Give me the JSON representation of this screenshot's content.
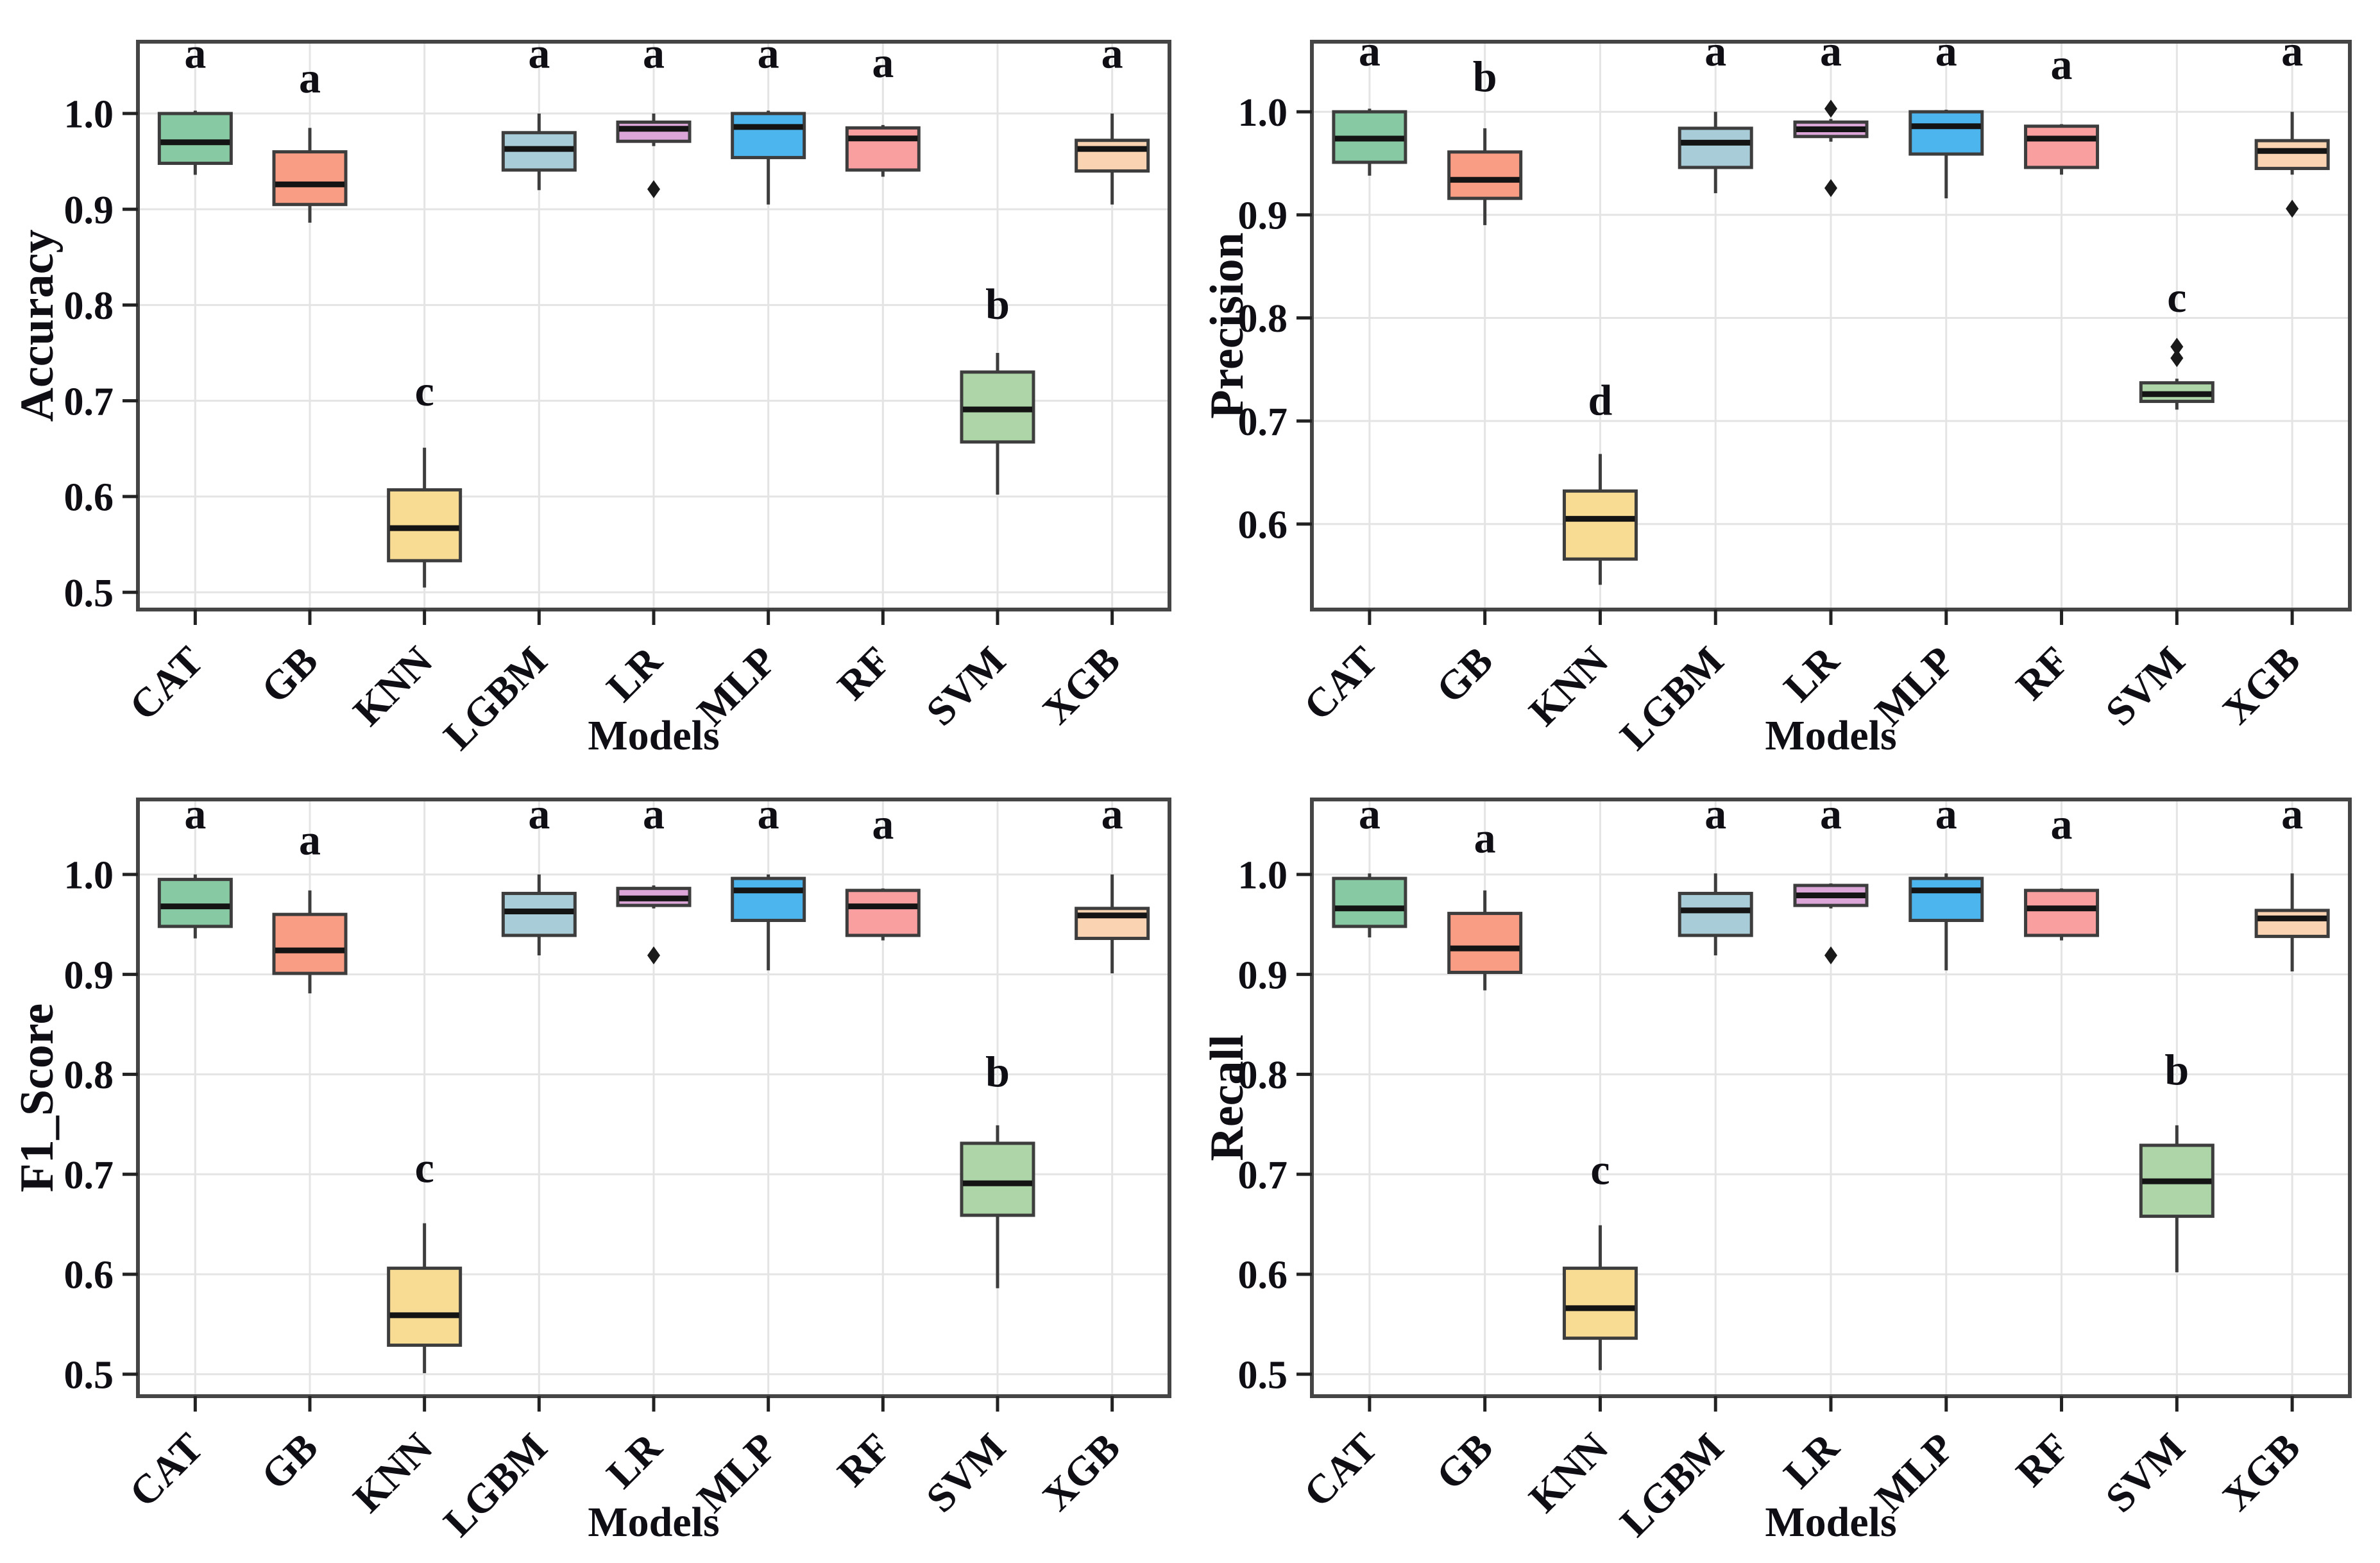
{
  "figure": {
    "background": "#ffffff",
    "grid_color": "#e4e4e4",
    "border_color": "#454545",
    "box_edge_color": "#3d3d3d",
    "median_color": "#141414",
    "outlier_color": "#1a1a1a",
    "text_color": "#0e0e14",
    "outlier_marker": "diamond"
  },
  "models": [
    "CAT",
    "GB",
    "KNN",
    "LGBM",
    "LR",
    "MLP",
    "RF",
    "SVM",
    "XGB"
  ],
  "model_colors": {
    "CAT": "#87c9a2",
    "GB": "#f99d85",
    "KNN": "#f8dc93",
    "LGBM": "#a9cdd8",
    "LR": "#dca6d9",
    "MLP": "#4db5ee",
    "RF": "#f99f9f",
    "SVM": "#aed5a7",
    "XGB": "#f9d3b2"
  },
  "chart_data": [
    {
      "type": "boxplot",
      "position": "top-left",
      "ylabel": "Accuracy",
      "xlabel": "Models",
      "ylim": [
        0.482,
        1.075
      ],
      "yticks": [
        1.0,
        0.9,
        0.8,
        0.7,
        0.6,
        0.5
      ],
      "grid": true,
      "categories": [
        "CAT",
        "GB",
        "KNN",
        "LGBM",
        "LR",
        "MLP",
        "RF",
        "SVM",
        "XGB"
      ],
      "boxes": [
        {
          "model": "CAT",
          "letter": "a",
          "letter_y": 1.048,
          "low": 0.936,
          "q1": 0.948,
          "median": 0.97,
          "q3": 1.0,
          "high": 1.003,
          "outliers": []
        },
        {
          "model": "GB",
          "letter": "a",
          "letter_y": 1.022,
          "low": 0.886,
          "q1": 0.905,
          "median": 0.926,
          "q3": 0.96,
          "high": 0.985,
          "outliers": []
        },
        {
          "model": "KNN",
          "letter": "c",
          "letter_y": 0.695,
          "low": 0.505,
          "q1": 0.533,
          "median": 0.567,
          "q3": 0.607,
          "high": 0.651,
          "outliers": []
        },
        {
          "model": "LGBM",
          "letter": "a",
          "letter_y": 1.048,
          "low": 0.92,
          "q1": 0.941,
          "median": 0.963,
          "q3": 0.98,
          "high": 1.0,
          "outliers": []
        },
        {
          "model": "LR",
          "letter": "a",
          "letter_y": 1.048,
          "low": 0.966,
          "q1": 0.971,
          "median": 0.984,
          "q3": 0.991,
          "high": 1.0,
          "outliers": [
            0.921
          ]
        },
        {
          "model": "MLP",
          "letter": "a",
          "letter_y": 1.048,
          "low": 0.905,
          "q1": 0.954,
          "median": 0.986,
          "q3": 1.0,
          "high": 1.003,
          "outliers": []
        },
        {
          "model": "RF",
          "letter": "a",
          "letter_y": 1.038,
          "low": 0.934,
          "q1": 0.941,
          "median": 0.974,
          "q3": 0.985,
          "high": 0.988,
          "outliers": []
        },
        {
          "model": "SVM",
          "letter": "b",
          "letter_y": 0.786,
          "low": 0.602,
          "q1": 0.657,
          "median": 0.691,
          "q3": 0.73,
          "high": 0.75,
          "outliers": []
        },
        {
          "model": "XGB",
          "letter": "a",
          "letter_y": 1.048,
          "low": 0.905,
          "q1": 0.94,
          "median": 0.963,
          "q3": 0.972,
          "high": 1.0,
          "outliers": []
        }
      ]
    },
    {
      "type": "boxplot",
      "position": "top-right",
      "ylabel": "Precision",
      "xlabel": "Models",
      "ylim": [
        0.517,
        1.068
      ],
      "yticks": [
        1.0,
        0.9,
        0.8,
        0.7,
        0.6
      ],
      "grid": true,
      "categories": [
        "CAT",
        "GB",
        "KNN",
        "LGBM",
        "LR",
        "MLP",
        "RF",
        "SVM",
        "XGB"
      ],
      "boxes": [
        {
          "model": "CAT",
          "letter": "a",
          "letter_y": 1.045,
          "low": 0.938,
          "q1": 0.951,
          "median": 0.974,
          "q3": 1.0,
          "high": 1.003,
          "outliers": []
        },
        {
          "model": "GB",
          "letter": "b",
          "letter_y": 1.02,
          "low": 0.89,
          "q1": 0.916,
          "median": 0.934,
          "q3": 0.961,
          "high": 0.984,
          "outliers": []
        },
        {
          "model": "KNN",
          "letter": "d",
          "letter_y": 0.706,
          "low": 0.541,
          "q1": 0.566,
          "median": 0.605,
          "q3": 0.632,
          "high": 0.668,
          "outliers": []
        },
        {
          "model": "LGBM",
          "letter": "a",
          "letter_y": 1.045,
          "low": 0.921,
          "q1": 0.946,
          "median": 0.97,
          "q3": 0.984,
          "high": 1.0,
          "outliers": []
        },
        {
          "model": "LR",
          "letter": "a",
          "letter_y": 1.045,
          "low": 0.971,
          "q1": 0.976,
          "median": 0.983,
          "q3": 0.99,
          "high": 0.993,
          "outliers": [
            1.003,
            0.926
          ]
        },
        {
          "model": "MLP",
          "letter": "a",
          "letter_y": 1.045,
          "low": 0.916,
          "q1": 0.959,
          "median": 0.986,
          "q3": 1.0,
          "high": 1.002,
          "outliers": []
        },
        {
          "model": "RF",
          "letter": "a",
          "letter_y": 1.032,
          "low": 0.939,
          "q1": 0.946,
          "median": 0.974,
          "q3": 0.986,
          "high": 0.988,
          "outliers": []
        },
        {
          "model": "SVM",
          "letter": "c",
          "letter_y": 0.806,
          "low": 0.711,
          "q1": 0.719,
          "median": 0.726,
          "q3": 0.737,
          "high": 0.741,
          "outliers": [
            0.761,
            0.772
          ]
        },
        {
          "model": "XGB",
          "letter": "a",
          "letter_y": 1.045,
          "low": 0.939,
          "q1": 0.945,
          "median": 0.962,
          "q3": 0.972,
          "high": 1.0,
          "outliers": [
            0.906
          ]
        }
      ]
    },
    {
      "type": "boxplot",
      "position": "bottom-left",
      "ylabel": "F1_Score",
      "xlabel": "Models",
      "ylim": [
        0.478,
        1.075
      ],
      "yticks": [
        1.0,
        0.9,
        0.8,
        0.7,
        0.6,
        0.5
      ],
      "grid": true,
      "categories": [
        "CAT",
        "GB",
        "KNN",
        "LGBM",
        "LR",
        "MLP",
        "RF",
        "SVM",
        "XGB"
      ],
      "boxes": [
        {
          "model": "CAT",
          "letter": "a",
          "letter_y": 1.046,
          "low": 0.936,
          "q1": 0.948,
          "median": 0.968,
          "q3": 0.995,
          "high": 1.0,
          "outliers": []
        },
        {
          "model": "GB",
          "letter": "a",
          "letter_y": 1.02,
          "low": 0.881,
          "q1": 0.901,
          "median": 0.924,
          "q3": 0.96,
          "high": 0.984,
          "outliers": []
        },
        {
          "model": "KNN",
          "letter": "c",
          "letter_y": 0.692,
          "low": 0.501,
          "q1": 0.529,
          "median": 0.559,
          "q3": 0.606,
          "high": 0.651,
          "outliers": []
        },
        {
          "model": "LGBM",
          "letter": "a",
          "letter_y": 1.046,
          "low": 0.919,
          "q1": 0.939,
          "median": 0.963,
          "q3": 0.981,
          "high": 1.0,
          "outliers": []
        },
        {
          "model": "LR",
          "letter": "a",
          "letter_y": 1.046,
          "low": 0.966,
          "q1": 0.969,
          "median": 0.976,
          "q3": 0.986,
          "high": 0.989,
          "outliers": [
            0.919
          ]
        },
        {
          "model": "MLP",
          "letter": "a",
          "letter_y": 1.046,
          "low": 0.904,
          "q1": 0.954,
          "median": 0.984,
          "q3": 0.996,
          "high": 1.0,
          "outliers": []
        },
        {
          "model": "RF",
          "letter": "a",
          "letter_y": 1.036,
          "low": 0.934,
          "q1": 0.939,
          "median": 0.968,
          "q3": 0.984,
          "high": 0.986,
          "outliers": []
        },
        {
          "model": "SVM",
          "letter": "b",
          "letter_y": 0.788,
          "low": 0.586,
          "q1": 0.659,
          "median": 0.691,
          "q3": 0.731,
          "high": 0.749,
          "outliers": []
        },
        {
          "model": "XGB",
          "letter": "a",
          "letter_y": 1.046,
          "low": 0.901,
          "q1": 0.936,
          "median": 0.959,
          "q3": 0.966,
          "high": 1.0,
          "outliers": []
        }
      ]
    },
    {
      "type": "boxplot",
      "position": "bottom-right",
      "ylabel": "Recall",
      "xlabel": "Models",
      "ylim": [
        0.478,
        1.075
      ],
      "yticks": [
        1.0,
        0.9,
        0.8,
        0.7,
        0.6,
        0.5
      ],
      "grid": true,
      "categories": [
        "CAT",
        "GB",
        "KNN",
        "LGBM",
        "LR",
        "MLP",
        "RF",
        "SVM",
        "XGB"
      ],
      "boxes": [
        {
          "model": "CAT",
          "letter": "a",
          "letter_y": 1.046,
          "low": 0.937,
          "q1": 0.948,
          "median": 0.966,
          "q3": 0.996,
          "high": 1.001,
          "outliers": []
        },
        {
          "model": "GB",
          "letter": "a",
          "letter_y": 1.022,
          "low": 0.884,
          "q1": 0.902,
          "median": 0.926,
          "q3": 0.961,
          "high": 0.984,
          "outliers": []
        },
        {
          "model": "KNN",
          "letter": "c",
          "letter_y": 0.69,
          "low": 0.504,
          "q1": 0.536,
          "median": 0.566,
          "q3": 0.606,
          "high": 0.649,
          "outliers": []
        },
        {
          "model": "LGBM",
          "letter": "a",
          "letter_y": 1.046,
          "low": 0.919,
          "q1": 0.939,
          "median": 0.964,
          "q3": 0.981,
          "high": 1.001,
          "outliers": []
        },
        {
          "model": "LR",
          "letter": "a",
          "letter_y": 1.046,
          "low": 0.966,
          "q1": 0.969,
          "median": 0.979,
          "q3": 0.989,
          "high": 0.991,
          "outliers": [
            0.919
          ]
        },
        {
          "model": "MLP",
          "letter": "a",
          "letter_y": 1.046,
          "low": 0.904,
          "q1": 0.954,
          "median": 0.984,
          "q3": 0.996,
          "high": 1.001,
          "outliers": []
        },
        {
          "model": "RF",
          "letter": "a",
          "letter_y": 1.036,
          "low": 0.934,
          "q1": 0.939,
          "median": 0.966,
          "q3": 0.984,
          "high": 0.986,
          "outliers": []
        },
        {
          "model": "SVM",
          "letter": "b",
          "letter_y": 0.79,
          "low": 0.602,
          "q1": 0.658,
          "median": 0.693,
          "q3": 0.729,
          "high": 0.749,
          "outliers": []
        },
        {
          "model": "XGB",
          "letter": "a",
          "letter_y": 1.046,
          "low": 0.903,
          "q1": 0.938,
          "median": 0.956,
          "q3": 0.964,
          "high": 1.001,
          "outliers": []
        }
      ]
    }
  ]
}
